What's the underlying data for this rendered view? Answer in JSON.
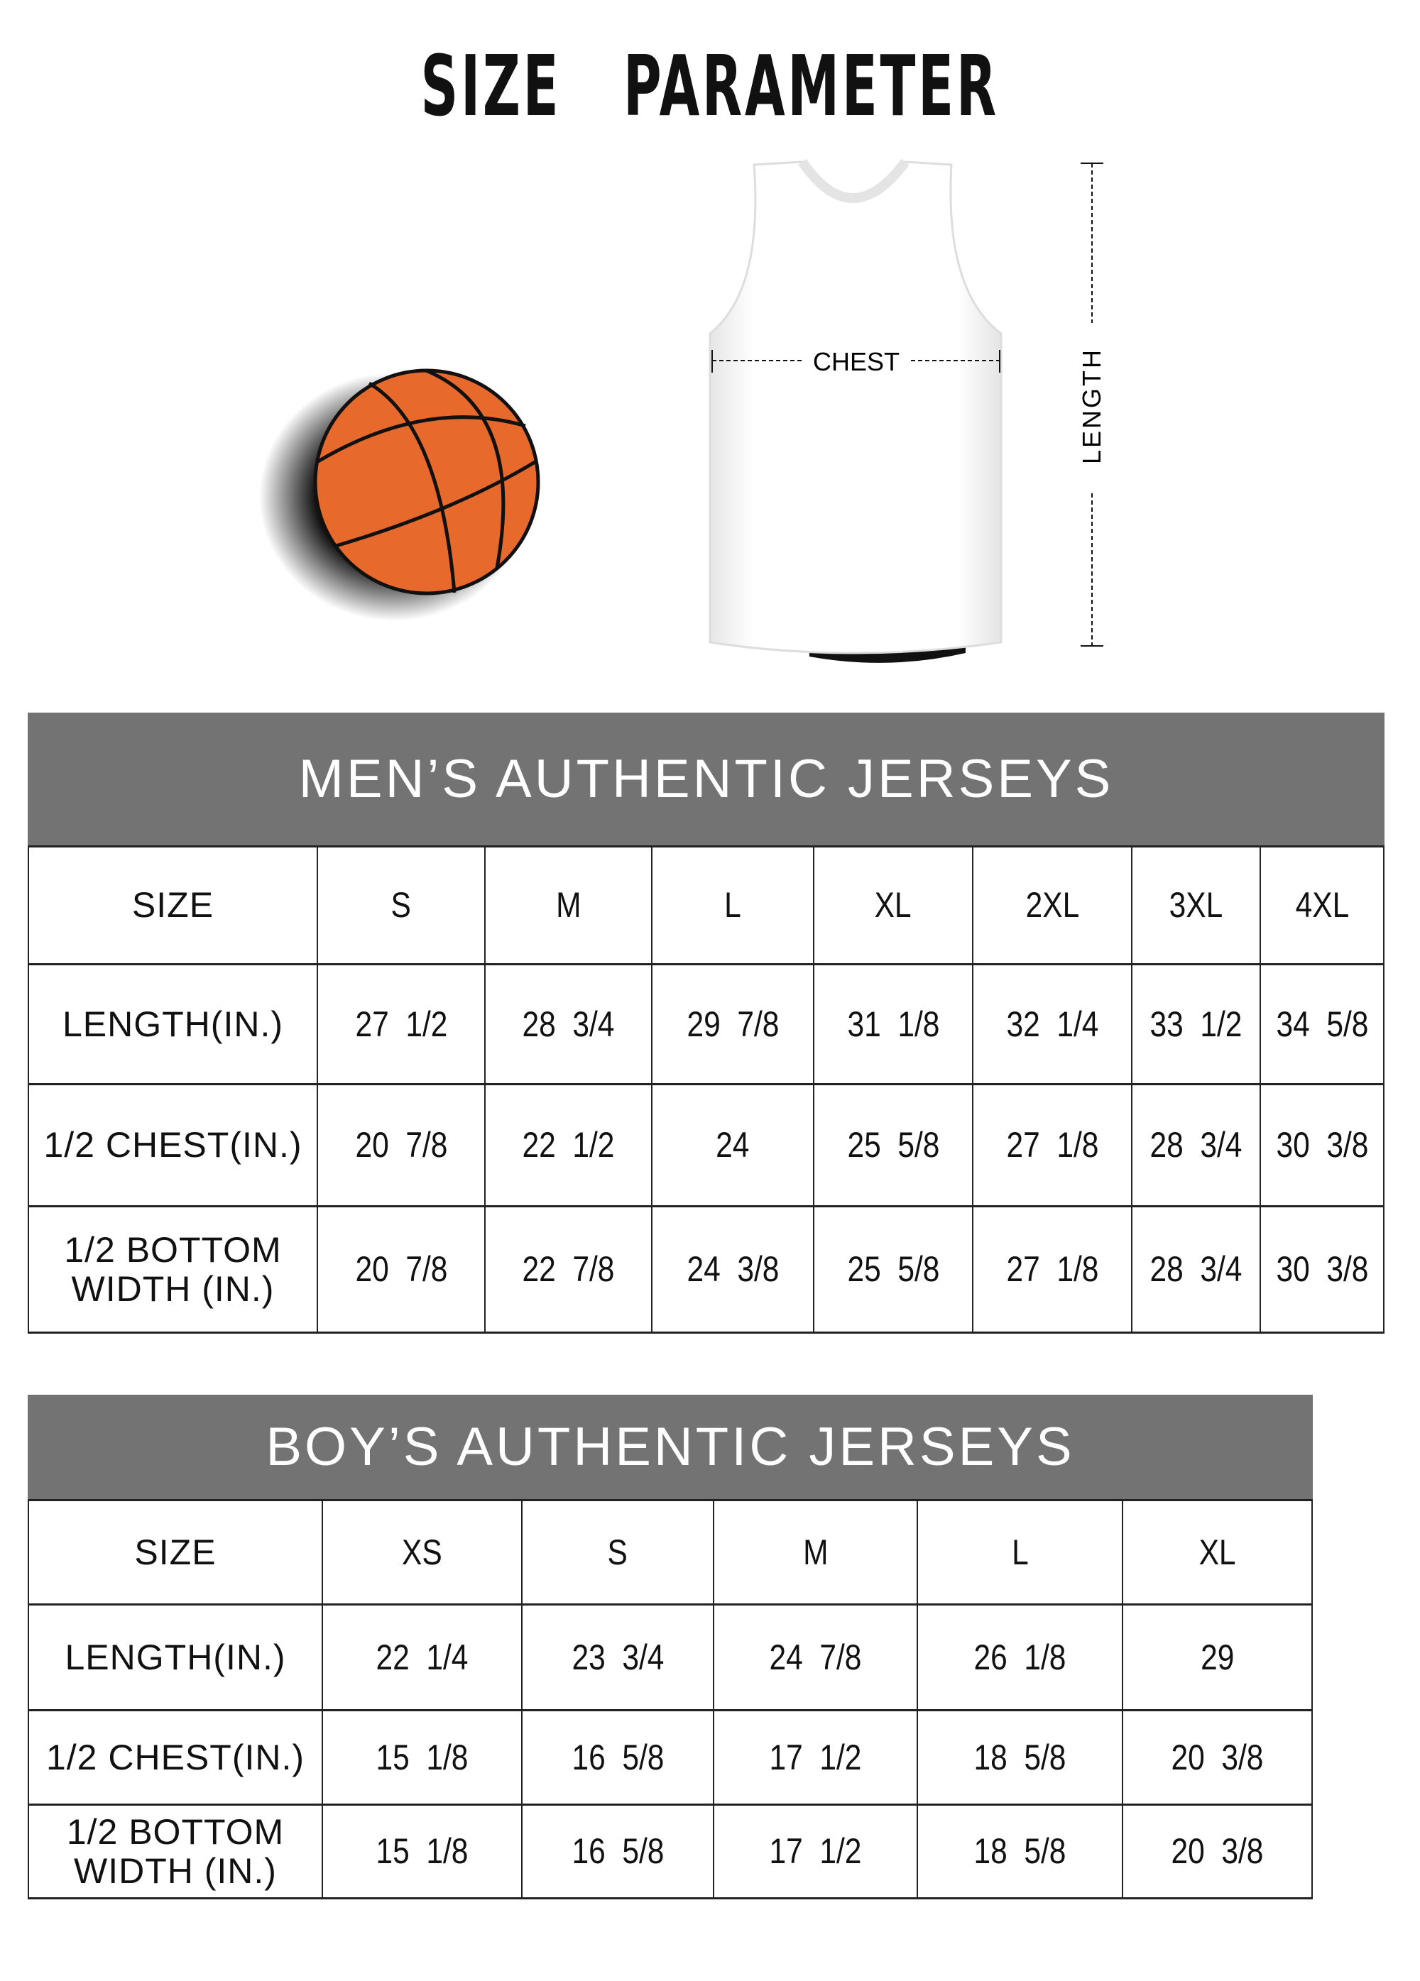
{
  "title": "SIZE   PARAMETER",
  "diagram": {
    "chest_label": "CHEST",
    "length_label": "LENGTH",
    "ball_color": "#e8692c",
    "band_color": "#737373"
  },
  "mens": {
    "heading": "MEN’S AUTHENTIC JERSEYS",
    "header": [
      "SIZE",
      "S",
      "M",
      "L",
      "XL",
      "2XL",
      "3XL",
      "4XL"
    ],
    "rows": [
      [
        "LENGTH(IN.)",
        "27  1/2",
        "28  3/4",
        "29  7/8",
        "31  1/8",
        "32  1/4",
        "33  1/2",
        "34  5/8"
      ],
      [
        "1/2 CHEST(IN.)",
        "20  7/8",
        "22  1/2",
        "24",
        "25  5/8",
        "27  1/8",
        "28  3/4",
        "30  3/8"
      ],
      [
        "1/2 BOTTOM WIDTH  (IN.)",
        "20  7/8",
        "22  7/8",
        "24  3/8",
        "25  5/8",
        "27  1/8",
        "28  3/4",
        "30  3/8"
      ]
    ]
  },
  "boys": {
    "heading": "BOY’S AUTHENTIC JERSEYS",
    "header": [
      "SIZE",
      "XS",
      "S",
      "M",
      "L",
      "XL"
    ],
    "rows": [
      [
        "LENGTH(IN.)",
        "22  1/4",
        "23  3/4",
        "24  7/8",
        "26  1/8",
        "29"
      ],
      [
        "1/2 CHEST(IN.)",
        "15  1/8",
        "16  5/8",
        "17  1/2",
        "18  5/8",
        "20  3/8"
      ],
      [
        "1/2 BOTTOM WIDTH  (IN.)",
        "15  1/8",
        "16  5/8",
        "17  1/2",
        "18  5/8",
        "20  3/8"
      ]
    ]
  }
}
